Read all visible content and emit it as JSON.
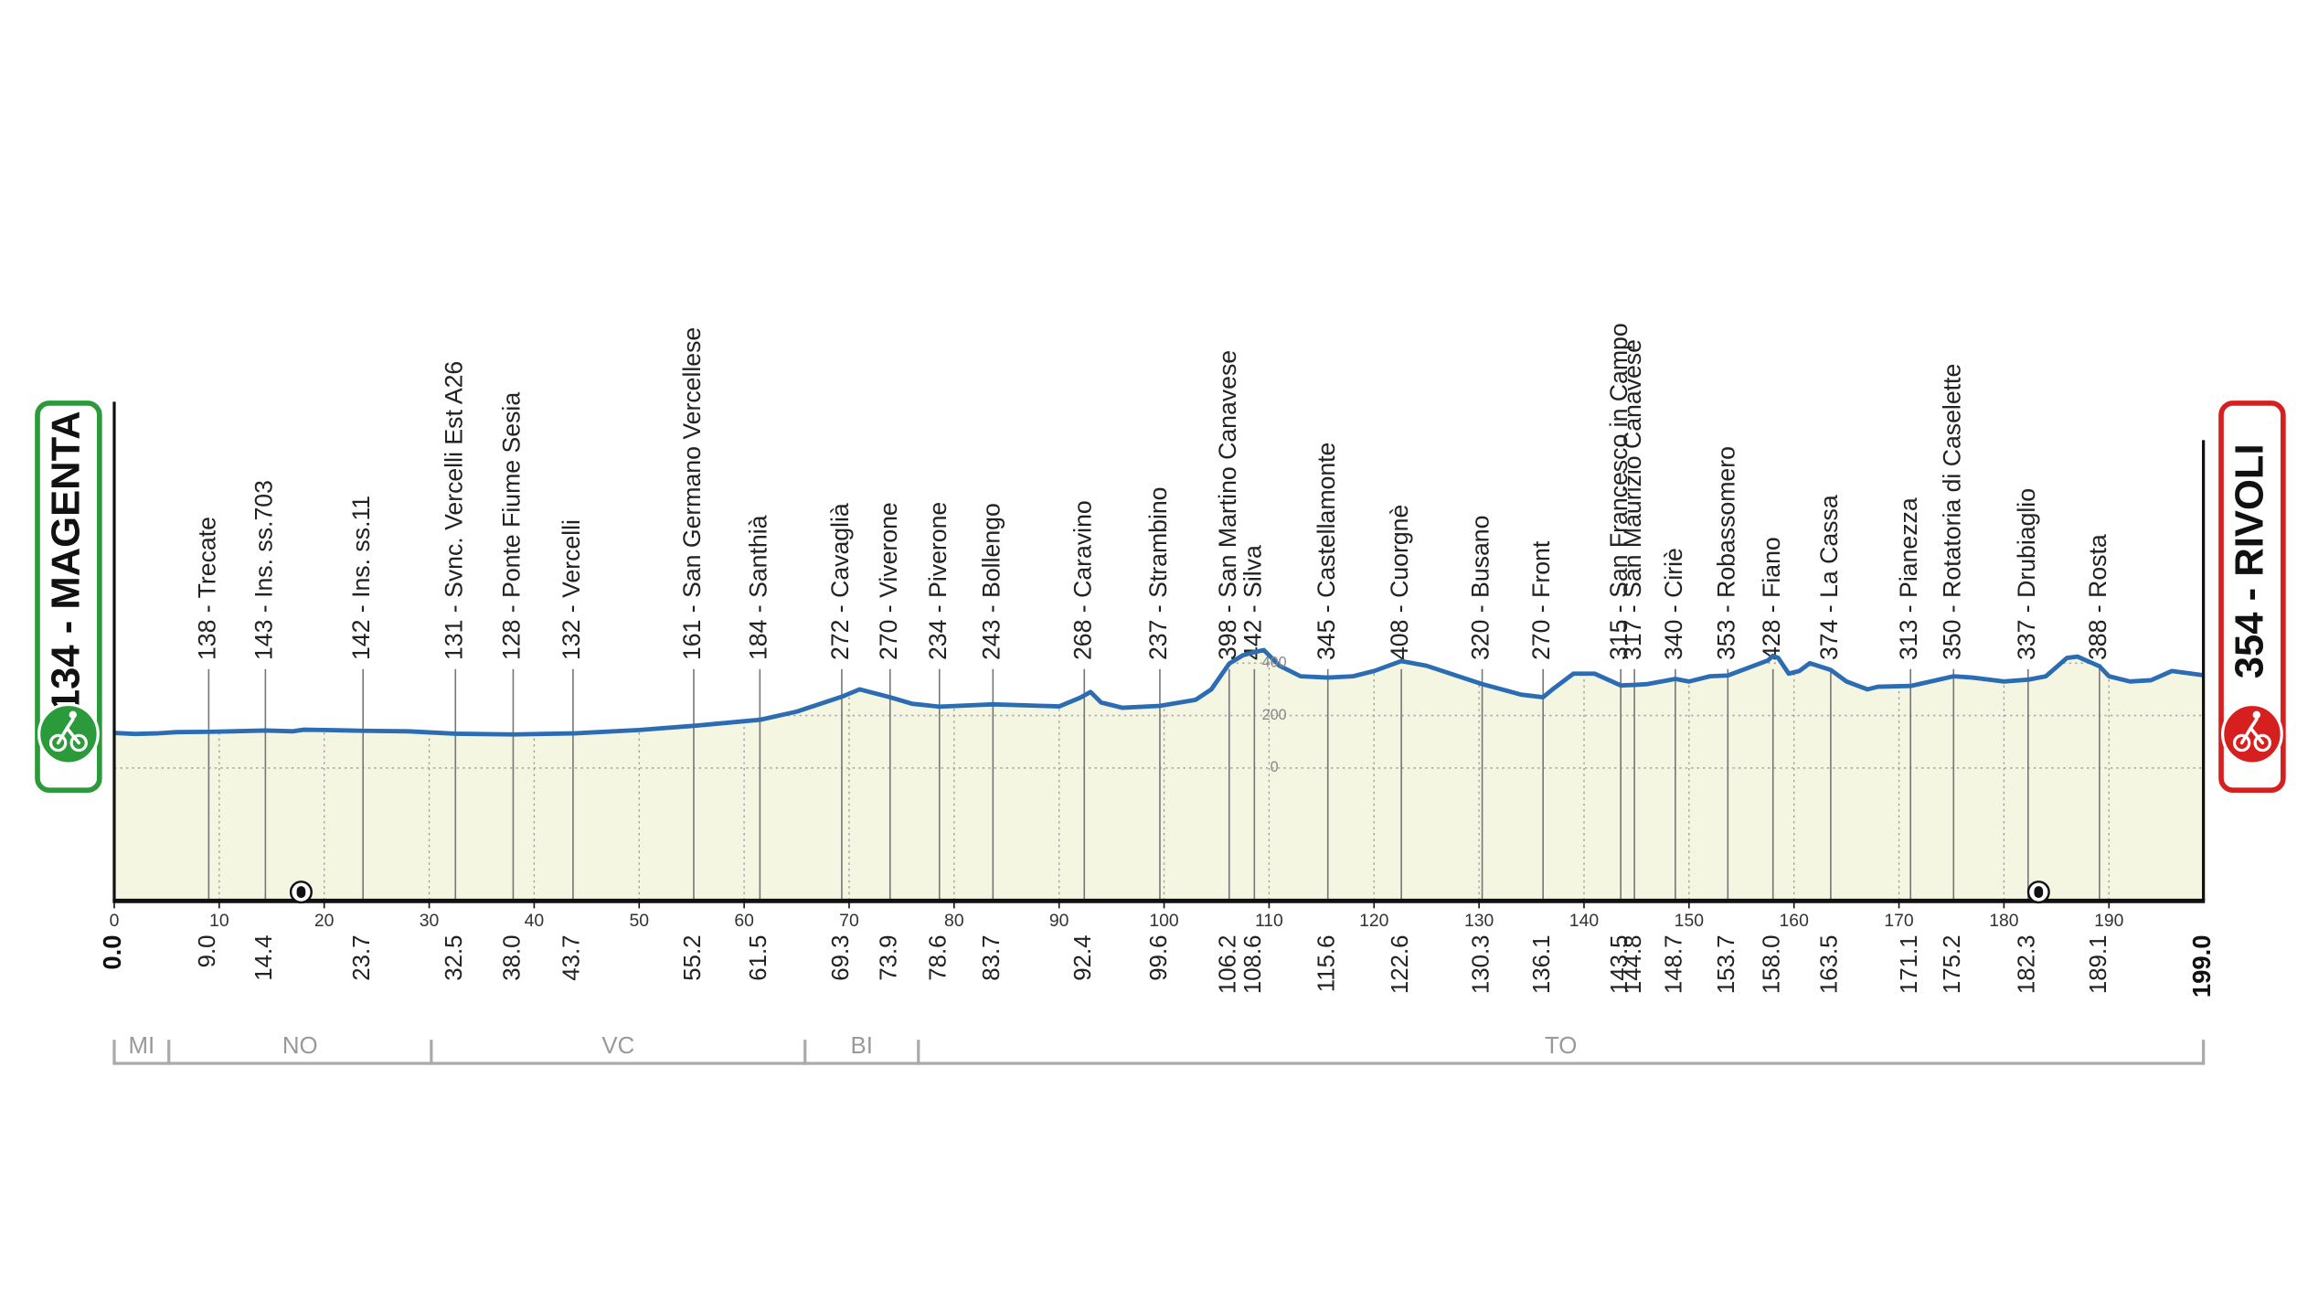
{
  "chart_data": {
    "type": "elevation-profile",
    "start_label": "134 - MAGENTA",
    "start_km_label": "0.0",
    "finish_label": "354 - RIVOLI",
    "finish_km_label": "199.0",
    "xlim": [
      0,
      199
    ],
    "ylim": [
      -500,
      1100
    ],
    "xticks": [
      0,
      10,
      20,
      30,
      40,
      50,
      60,
      70,
      80,
      90,
      100,
      110,
      120,
      130,
      140,
      150,
      160,
      170,
      180,
      190
    ],
    "yticks": [
      0,
      200,
      400
    ],
    "yticks_at_km": 110.5,
    "color": "#2b6cb3",
    "fill_color": "#f4f6e2",
    "grid": true,
    "profile": {
      "km": [
        0,
        2,
        4,
        6,
        9,
        14.4,
        17,
        18,
        20,
        23.7,
        28,
        32.5,
        38,
        43.7,
        50,
        55.2,
        61.5,
        65,
        69.3,
        71,
        73.9,
        76,
        78.6,
        83.7,
        90,
        92,
        93,
        94,
        96,
        99.6,
        103,
        104.5,
        106.2,
        107.5,
        108.6,
        109.5,
        111,
        113,
        115.6,
        118,
        120,
        122.6,
        125,
        130.3,
        134,
        136.1,
        137,
        139,
        141,
        143.5,
        144.8,
        146,
        148.7,
        150,
        152,
        153.7,
        155.5,
        157.5,
        158,
        158.5,
        159.5,
        160.5,
        161.5,
        163.5,
        165,
        167,
        168,
        171.1,
        173,
        175.2,
        177,
        180,
        182.3,
        184,
        186,
        187,
        189.1,
        190,
        192,
        194,
        196,
        199
      ],
      "elevation": [
        134,
        130,
        132,
        137,
        138,
        143,
        140,
        146,
        145,
        142,
        140,
        131,
        128,
        132,
        145,
        161,
        184,
        215,
        272,
        300,
        270,
        245,
        234,
        243,
        235,
        268,
        290,
        250,
        230,
        237,
        260,
        300,
        398,
        430,
        442,
        450,
        390,
        350,
        345,
        350,
        370,
        408,
        390,
        320,
        280,
        270,
        300,
        360,
        360,
        315,
        317,
        320,
        340,
        330,
        350,
        353,
        380,
        410,
        428,
        420,
        360,
        370,
        400,
        374,
        330,
        300,
        310,
        313,
        330,
        350,
        345,
        330,
        337,
        350,
        420,
        425,
        388,
        350,
        330,
        335,
        370,
        354
      ]
    },
    "waypoints": {
      "names": [
        "138 - Trecate",
        "143 - Ins. ss.703",
        "142 - Ins. ss.11",
        "131 - Svnc. Vercelli Est A26",
        "128 - Ponte Fiume Sesia",
        "132 - Vercelli",
        "161 - San Germano Vercellese",
        "184 - Santhià",
        "272 - Cavaglià",
        "270 - Viverone",
        "234 - Piverone",
        "243 - Bollengo",
        "268 - Caravino",
        "237 - Strambino",
        "398 - San Martino Canavese",
        "442 - Silva",
        "345 - Castellamonte",
        "408 - Cuorgnè",
        "320 - Busano",
        "270 - Front",
        "315 - San Francesco in Campo",
        "317 - San Maurizio Canavese",
        "340 - Ciriè",
        "353 - Robassomero",
        "428 - Fiano",
        "374 - La Cassa",
        "313 - Pianezza",
        "350 - Rotatoria  di Caselette",
        "337 - Drubiaglio",
        "388 - Rosta"
      ],
      "km": [
        9.0,
        14.4,
        23.7,
        32.5,
        38.0,
        43.7,
        55.2,
        61.5,
        69.3,
        73.9,
        78.6,
        83.7,
        92.4,
        99.6,
        106.2,
        108.6,
        115.6,
        122.6,
        130.3,
        136.1,
        143.5,
        144.8,
        148.7,
        153.7,
        158.0,
        163.5,
        171.1,
        175.2,
        182.3,
        189.1
      ],
      "km_labels": [
        "9.0",
        "14.4",
        "23.7",
        "32.5",
        "38.0",
        "43.7",
        "55.2",
        "61.5",
        "69.3",
        "73.9",
        "78.6",
        "83.7",
        "92.4",
        "99.6",
        "106.2",
        "108.6",
        "115.6",
        "122.6",
        "130.3",
        "136.1",
        "143.5",
        "144.8",
        "148.7",
        "153.7",
        "158.0",
        "163.5",
        "171.1",
        "175.2",
        "182.3",
        "189.1"
      ]
    },
    "tunnels_km": [
      17.8,
      183.3
    ],
    "regions": [
      "MI",
      "NO",
      "VC",
      "BI",
      "TO"
    ],
    "region_bounds": [
      0,
      5.2,
      30.2,
      65.8,
      76.6,
      199
    ]
  }
}
